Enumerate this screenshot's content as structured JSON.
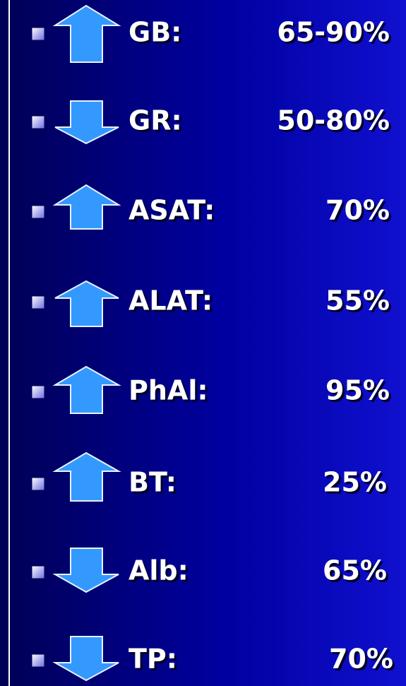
{
  "items": [
    {
      "label": "GB:",
      "value": "65-90%"
    },
    {
      "label": "GR:",
      "value": "50-80%"
    },
    {
      "label": "ASAT:",
      "value": "70%"
    },
    {
      "label": "ALAT:",
      "value": "55%"
    },
    {
      "label": "PhAl:",
      "value": "95%"
    },
    {
      "label": "BT:",
      "value": "25%"
    },
    {
      "label": "Alb:",
      "value": "65%"
    },
    {
      "label": "TP:",
      "value": "70%"
    }
  ]
}
